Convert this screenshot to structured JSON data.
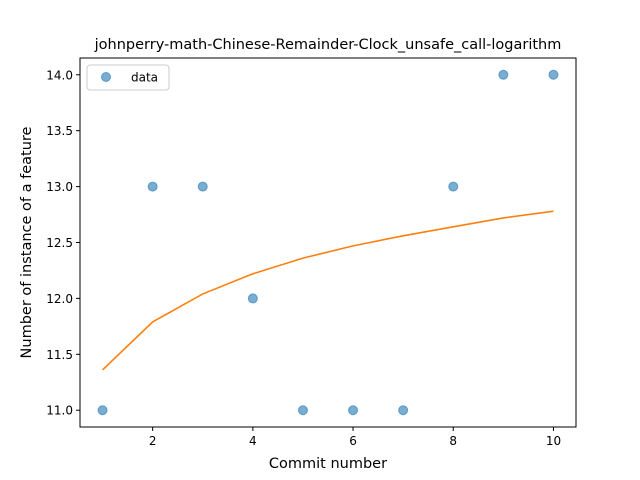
{
  "chart_data": {
    "type": "scatter",
    "title": "johnperry-math-Chinese-Remainder-Clock_unsafe_call-logarithm",
    "xlabel": "Commit number",
    "ylabel": "Number of instance of a feature",
    "xlim": [
      0.55,
      10.45
    ],
    "ylim": [
      10.85,
      14.15
    ],
    "xticks": [
      2,
      4,
      6,
      8,
      10
    ],
    "yticks": [
      11.0,
      11.5,
      12.0,
      12.5,
      13.0,
      13.5,
      14.0
    ],
    "xtick_labels": [
      "2",
      "4",
      "6",
      "8",
      "10"
    ],
    "ytick_labels": [
      "11.0",
      "11.5",
      "12.0",
      "12.5",
      "13.0",
      "13.5",
      "14.0"
    ],
    "grid": false,
    "legend_position": "upper-left",
    "series": [
      {
        "name": "data",
        "kind": "scatter",
        "color": "#1f77b4",
        "x": [
          1,
          2,
          3,
          4,
          5,
          6,
          7,
          8,
          9,
          10
        ],
        "y": [
          11,
          13,
          13,
          12,
          11,
          11,
          11,
          13,
          14,
          14
        ]
      },
      {
        "kind": "line",
        "color": "#ff7f0e",
        "x": [
          1,
          2,
          3,
          4,
          5,
          6,
          7,
          8,
          9,
          10
        ],
        "y": [
          11.36,
          11.79,
          12.04,
          12.22,
          12.36,
          12.47,
          12.56,
          12.64,
          12.72,
          12.78
        ]
      }
    ]
  }
}
